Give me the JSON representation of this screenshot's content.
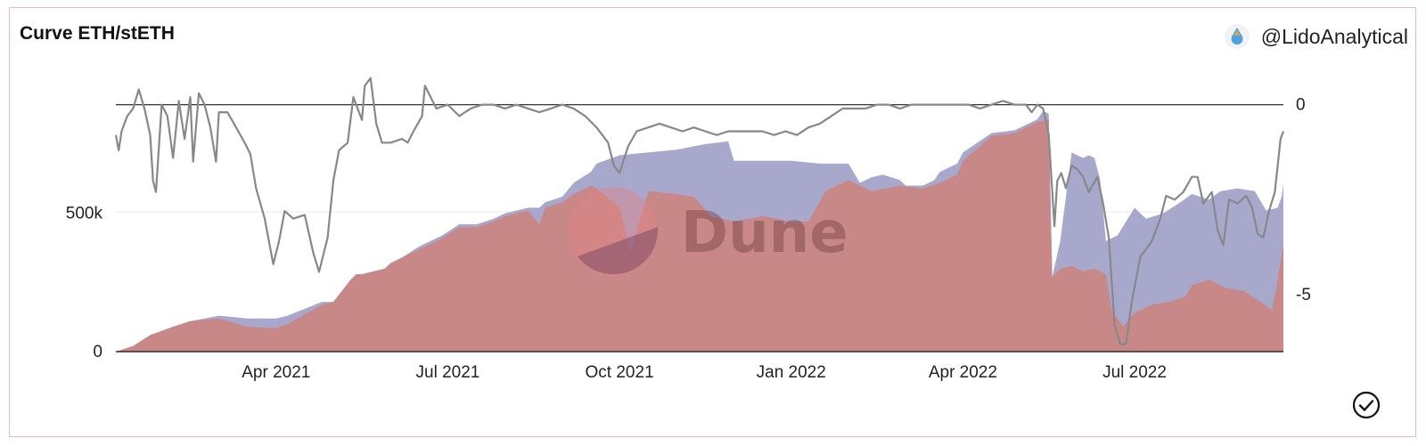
{
  "header": {
    "title": "Curve ETH/stETH",
    "author": "@LidoAnalytical",
    "author_icon": "lido-drop-icon"
  },
  "watermark": {
    "text": "Dune"
  },
  "footer": {
    "status_icon": "check-circle-icon"
  },
  "colors": {
    "series_total": "#a8a8cc",
    "series_steth": "#c98888",
    "peg_line": "#888888",
    "baseline": "#333333"
  },
  "chart_data": {
    "type": "area",
    "title": "Curve ETH/stETH",
    "x_tick_labels": [
      "Apr 2021",
      "Jul 2021",
      "Oct 2021",
      "Jan 2022",
      "Apr 2022",
      "Jul 2022"
    ],
    "x_tick_months": [
      3,
      6,
      9,
      12,
      15,
      18
    ],
    "x_range_months": [
      0.2,
      20.6
    ],
    "left_axis": {
      "tick_labels": [
        "0",
        "500k"
      ],
      "ticks": [
        0,
        500000
      ],
      "ylim": [
        0,
        975000
      ]
    },
    "right_axis": {
      "tick_labels": [
        "0",
        "-5"
      ],
      "ticks": [
        0,
        -5
      ],
      "ylim": [
        -6.5,
        0.6
      ]
    },
    "grid": true,
    "series": [
      {
        "kind": "area",
        "axis": "left",
        "points": [
          [
            0.2,
            0
          ],
          [
            0.5,
            20000
          ],
          [
            0.8,
            60000
          ],
          [
            1.2,
            90000
          ],
          [
            1.5,
            110000
          ],
          [
            2.0,
            130000
          ],
          [
            2.5,
            120000
          ],
          [
            3.0,
            120000
          ],
          [
            3.2,
            130000
          ],
          [
            3.8,
            180000
          ],
          [
            4.0,
            180000
          ],
          [
            4.3,
            250000
          ],
          [
            4.4,
            280000
          ],
          [
            4.5,
            280000
          ],
          [
            4.9,
            300000
          ],
          [
            5.0,
            320000
          ],
          [
            5.2,
            340000
          ],
          [
            5.5,
            380000
          ],
          [
            5.9,
            420000
          ],
          [
            6.2,
            460000
          ],
          [
            6.5,
            460000
          ],
          [
            6.8,
            480000
          ],
          [
            7.0,
            500000
          ],
          [
            7.4,
            520000
          ],
          [
            7.6,
            520000
          ],
          [
            7.7,
            540000
          ],
          [
            8.0,
            560000
          ],
          [
            8.2,
            610000
          ],
          [
            8.5,
            650000
          ],
          [
            8.6,
            680000
          ],
          [
            9.0,
            710000
          ],
          [
            9.5,
            720000
          ],
          [
            10.0,
            730000
          ],
          [
            10.5,
            750000
          ],
          [
            10.9,
            760000
          ],
          [
            11.0,
            690000
          ],
          [
            11.5,
            690000
          ],
          [
            12.0,
            690000
          ],
          [
            12.5,
            680000
          ],
          [
            13.0,
            680000
          ],
          [
            13.2,
            610000
          ],
          [
            13.4,
            630000
          ],
          [
            13.6,
            640000
          ],
          [
            13.9,
            620000
          ],
          [
            14.0,
            600000
          ],
          [
            14.3,
            600000
          ],
          [
            14.5,
            620000
          ],
          [
            14.6,
            650000
          ],
          [
            14.9,
            680000
          ],
          [
            15.0,
            720000
          ],
          [
            15.5,
            790000
          ],
          [
            15.9,
            800000
          ],
          [
            16.1,
            820000
          ],
          [
            16.3,
            840000
          ],
          [
            16.4,
            870000
          ],
          [
            16.5,
            860000
          ],
          [
            16.56,
            270000
          ],
          [
            16.7,
            400000
          ],
          [
            16.9,
            720000
          ],
          [
            17.1,
            700000
          ],
          [
            17.2,
            710000
          ],
          [
            17.3,
            700000
          ],
          [
            17.4,
            620000
          ],
          [
            17.5,
            400000
          ],
          [
            17.7,
            420000
          ],
          [
            18.0,
            520000
          ],
          [
            18.2,
            480000
          ],
          [
            18.5,
            500000
          ],
          [
            18.8,
            540000
          ],
          [
            19.0,
            570000
          ],
          [
            19.3,
            550000
          ],
          [
            19.5,
            580000
          ],
          [
            19.8,
            590000
          ],
          [
            20.1,
            580000
          ],
          [
            20.3,
            510000
          ],
          [
            20.5,
            520000
          ],
          [
            20.57,
            560000
          ],
          [
            20.6,
            610000
          ],
          [
            20.6,
            0
          ]
        ]
      },
      {
        "kind": "area",
        "axis": "left",
        "points": [
          [
            0.2,
            0
          ],
          [
            0.5,
            20000
          ],
          [
            0.8,
            60000
          ],
          [
            1.2,
            90000
          ],
          [
            1.5,
            110000
          ],
          [
            2.0,
            120000
          ],
          [
            2.5,
            90000
          ],
          [
            3.0,
            85000
          ],
          [
            3.2,
            100000
          ],
          [
            3.8,
            170000
          ],
          [
            4.0,
            180000
          ],
          [
            4.3,
            260000
          ],
          [
            4.4,
            280000
          ],
          [
            4.5,
            280000
          ],
          [
            4.9,
            300000
          ],
          [
            5.0,
            320000
          ],
          [
            5.2,
            340000
          ],
          [
            5.5,
            370000
          ],
          [
            5.9,
            410000
          ],
          [
            6.2,
            450000
          ],
          [
            6.5,
            450000
          ],
          [
            6.8,
            470000
          ],
          [
            7.0,
            490000
          ],
          [
            7.4,
            510000
          ],
          [
            7.6,
            460000
          ],
          [
            7.7,
            520000
          ],
          [
            8.0,
            540000
          ],
          [
            8.2,
            570000
          ],
          [
            8.5,
            600000
          ],
          [
            8.6,
            590000
          ],
          [
            9.0,
            520000
          ],
          [
            9.2,
            360000
          ],
          [
            9.5,
            580000
          ],
          [
            10.0,
            570000
          ],
          [
            10.3,
            560000
          ],
          [
            10.6,
            490000
          ],
          [
            11.0,
            470000
          ],
          [
            11.5,
            490000
          ],
          [
            12.0,
            470000
          ],
          [
            12.3,
            470000
          ],
          [
            12.6,
            580000
          ],
          [
            13.0,
            620000
          ],
          [
            13.4,
            580000
          ],
          [
            13.9,
            600000
          ],
          [
            14.3,
            590000
          ],
          [
            14.6,
            610000
          ],
          [
            14.9,
            640000
          ],
          [
            15.0,
            690000
          ],
          [
            15.5,
            780000
          ],
          [
            15.9,
            790000
          ],
          [
            16.1,
            810000
          ],
          [
            16.3,
            830000
          ],
          [
            16.5,
            840000
          ],
          [
            16.56,
            270000
          ],
          [
            16.7,
            300000
          ],
          [
            16.9,
            310000
          ],
          [
            17.1,
            290000
          ],
          [
            17.3,
            300000
          ],
          [
            17.5,
            280000
          ],
          [
            17.6,
            150000
          ],
          [
            17.8,
            90000
          ],
          [
            18.0,
            140000
          ],
          [
            18.3,
            170000
          ],
          [
            18.6,
            180000
          ],
          [
            18.9,
            200000
          ],
          [
            19.0,
            240000
          ],
          [
            19.3,
            260000
          ],
          [
            19.6,
            230000
          ],
          [
            19.9,
            220000
          ],
          [
            20.2,
            180000
          ],
          [
            20.4,
            150000
          ],
          [
            20.5,
            260000
          ],
          [
            20.6,
            390000
          ],
          [
            20.6,
            0
          ]
        ]
      },
      {
        "kind": "line",
        "axis": "right",
        "points": [
          [
            0.2,
            -0.8
          ],
          [
            0.25,
            -1.2
          ],
          [
            0.3,
            -0.7
          ],
          [
            0.4,
            -0.3
          ],
          [
            0.5,
            -0.1
          ],
          [
            0.6,
            0.4
          ],
          [
            0.7,
            -0.1
          ],
          [
            0.8,
            -0.8
          ],
          [
            0.85,
            -2.0
          ],
          [
            0.9,
            -2.3
          ],
          [
            1.0,
            0.0
          ],
          [
            1.1,
            -0.3
          ],
          [
            1.2,
            -1.4
          ],
          [
            1.3,
            0.1
          ],
          [
            1.4,
            -0.9
          ],
          [
            1.5,
            0.2
          ],
          [
            1.55,
            -1.5
          ],
          [
            1.65,
            0.3
          ],
          [
            1.75,
            0.0
          ],
          [
            1.85,
            -0.6
          ],
          [
            1.95,
            -1.5
          ],
          [
            2.0,
            -0.2
          ],
          [
            2.15,
            -0.2
          ],
          [
            2.3,
            -0.6
          ],
          [
            2.45,
            -1.0
          ],
          [
            2.55,
            -1.3
          ],
          [
            2.65,
            -2.2
          ],
          [
            2.8,
            -3.0
          ],
          [
            2.95,
            -4.2
          ],
          [
            3.05,
            -3.6
          ],
          [
            3.15,
            -2.8
          ],
          [
            3.3,
            -3.0
          ],
          [
            3.5,
            -2.9
          ],
          [
            3.65,
            -3.9
          ],
          [
            3.75,
            -4.4
          ],
          [
            3.9,
            -3.5
          ],
          [
            4.0,
            -2.0
          ],
          [
            4.1,
            -1.2
          ],
          [
            4.25,
            -1.0
          ],
          [
            4.35,
            0.2
          ],
          [
            4.5,
            -0.4
          ],
          [
            4.55,
            0.5
          ],
          [
            4.65,
            0.7
          ],
          [
            4.75,
            -0.5
          ],
          [
            4.85,
            -1.0
          ],
          [
            5.0,
            -1.0
          ],
          [
            5.2,
            -0.9
          ],
          [
            5.3,
            -1.0
          ],
          [
            5.4,
            -0.7
          ],
          [
            5.55,
            -0.3
          ],
          [
            5.6,
            0.5
          ],
          [
            5.7,
            0.2
          ],
          [
            5.8,
            -0.1
          ],
          [
            6.0,
            0.0
          ],
          [
            6.2,
            -0.3
          ],
          [
            6.4,
            -0.1
          ],
          [
            6.6,
            0.0
          ],
          [
            6.8,
            0.0
          ],
          [
            7.0,
            -0.1
          ],
          [
            7.2,
            0.0
          ],
          [
            7.4,
            -0.1
          ],
          [
            7.6,
            -0.2
          ],
          [
            7.8,
            -0.1
          ],
          [
            8.0,
            0.0
          ],
          [
            8.2,
            -0.1
          ],
          [
            8.4,
            -0.3
          ],
          [
            8.6,
            -0.6
          ],
          [
            8.8,
            -1.0
          ],
          [
            8.9,
            -1.6
          ],
          [
            9.0,
            -1.8
          ],
          [
            9.15,
            -1.1
          ],
          [
            9.3,
            -0.7
          ],
          [
            9.5,
            -0.6
          ],
          [
            9.7,
            -0.5
          ],
          [
            9.9,
            -0.6
          ],
          [
            10.1,
            -0.7
          ],
          [
            10.3,
            -0.6
          ],
          [
            10.5,
            -0.7
          ],
          [
            10.7,
            -0.8
          ],
          [
            10.9,
            -0.7
          ],
          [
            11.1,
            -0.7
          ],
          [
            11.3,
            -0.7
          ],
          [
            11.5,
            -0.7
          ],
          [
            11.7,
            -0.8
          ],
          [
            11.9,
            -0.7
          ],
          [
            12.1,
            -0.8
          ],
          [
            12.3,
            -0.6
          ],
          [
            12.5,
            -0.5
          ],
          [
            12.7,
            -0.3
          ],
          [
            12.9,
            -0.1
          ],
          [
            13.1,
            -0.1
          ],
          [
            13.3,
            -0.1
          ],
          [
            13.5,
            0.0
          ],
          [
            13.7,
            0.0
          ],
          [
            13.9,
            -0.1
          ],
          [
            14.1,
            0.0
          ],
          [
            14.3,
            0.0
          ],
          [
            14.5,
            0.0
          ],
          [
            14.7,
            0.0
          ],
          [
            14.9,
            0.0
          ],
          [
            15.1,
            0.0
          ],
          [
            15.3,
            -0.1
          ],
          [
            15.5,
            0.0
          ],
          [
            15.7,
            0.1
          ],
          [
            15.9,
            0.0
          ],
          [
            16.1,
            0.0
          ],
          [
            16.2,
            -0.2
          ],
          [
            16.3,
            0.0
          ],
          [
            16.4,
            -0.1
          ],
          [
            16.45,
            -0.4
          ],
          [
            16.5,
            -0.8
          ],
          [
            16.55,
            -2.0
          ],
          [
            16.6,
            -3.2
          ],
          [
            16.65,
            -2.0
          ],
          [
            16.72,
            -1.8
          ],
          [
            16.8,
            -2.2
          ],
          [
            16.9,
            -1.6
          ],
          [
            17.0,
            -1.7
          ],
          [
            17.1,
            -1.9
          ],
          [
            17.2,
            -2.3
          ],
          [
            17.35,
            -1.9
          ],
          [
            17.45,
            -2.6
          ],
          [
            17.55,
            -3.5
          ],
          [
            17.65,
            -5.8
          ],
          [
            17.75,
            -6.3
          ],
          [
            17.85,
            -6.3
          ],
          [
            17.95,
            -5.2
          ],
          [
            18.1,
            -4.0
          ],
          [
            18.2,
            -3.8
          ],
          [
            18.3,
            -3.6
          ],
          [
            18.45,
            -3.0
          ],
          [
            18.55,
            -2.4
          ],
          [
            18.7,
            -2.5
          ],
          [
            18.85,
            -2.3
          ],
          [
            19.0,
            -1.9
          ],
          [
            19.1,
            -1.9
          ],
          [
            19.2,
            -2.6
          ],
          [
            19.35,
            -2.3
          ],
          [
            19.45,
            -3.3
          ],
          [
            19.55,
            -3.7
          ],
          [
            19.65,
            -2.5
          ],
          [
            19.8,
            -2.6
          ],
          [
            19.95,
            -2.4
          ],
          [
            20.05,
            -2.7
          ],
          [
            20.15,
            -3.4
          ],
          [
            20.25,
            -3.5
          ],
          [
            20.35,
            -2.8
          ],
          [
            20.45,
            -2.3
          ],
          [
            20.55,
            -0.9
          ],
          [
            20.6,
            -0.7
          ]
        ]
      }
    ]
  }
}
